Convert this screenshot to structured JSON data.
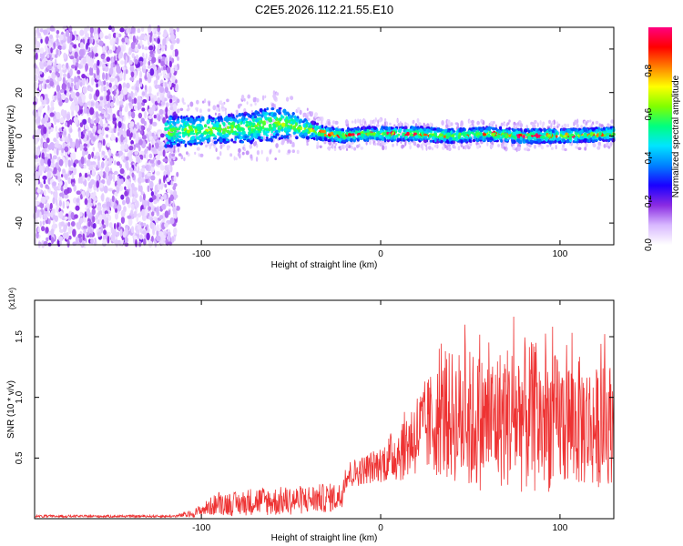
{
  "figure_title": "C2E5.2026.112.21.55.E10",
  "colors": {
    "axis": "#000000",
    "snr_line": "#ee3333",
    "spectrogram_background": "#ffffff"
  },
  "chart_data": [
    {
      "type": "heatmap",
      "name": "spectrogram",
      "xlabel": "Height of straight line (km)",
      "ylabel": "Frequency (Hz)",
      "xlim": [
        -193,
        130
      ],
      "ylim": [
        -50,
        50
      ],
      "x_ticks": [
        -100,
        0,
        100
      ],
      "x_tick_labels": [
        "-100",
        "0",
        "100"
      ],
      "y_ticks": [
        -40,
        -20,
        0,
        20,
        40
      ],
      "y_tick_labels": [
        "-40",
        "-20",
        "0",
        "20",
        "40"
      ],
      "noise_region_x": [
        -193,
        -113
      ],
      "signal_band": {
        "x": [
          -120,
          -90,
          -70,
          -60,
          -50,
          -40,
          -30,
          -20,
          -10,
          0,
          20,
          40,
          60,
          80,
          100,
          130
        ],
        "center_hz": [
          2,
          3,
          4,
          6,
          5,
          3,
          1,
          0,
          1,
          1,
          1,
          0,
          1,
          0,
          0,
          1
        ],
        "half_width_hz": [
          7,
          6,
          7,
          8,
          6,
          4,
          3,
          3,
          3,
          3,
          3,
          3,
          3,
          3,
          3,
          3
        ]
      },
      "colorbar": {
        "label": "Normalized spectral amplitude",
        "range": [
          0,
          1
        ],
        "ticks": [
          0,
          0.2,
          0.4,
          0.6,
          0.8
        ],
        "tick_labels": [
          "0.0",
          "0.2",
          "0.4",
          "0.6",
          "0.8"
        ],
        "colormap": [
          "#ffffff",
          "#d8b8ff",
          "#8a2be2",
          "#1a00ff",
          "#0080ff",
          "#00e5ff",
          "#00ff80",
          "#80ff00",
          "#ffff00",
          "#ff8000",
          "#ff0000",
          "#ff0080"
        ]
      }
    },
    {
      "type": "line",
      "name": "snr",
      "xlabel": "Height of straight line (km)",
      "ylabel": "SNR (10 * v/v)",
      "y_scale_label": "(x10⁴)",
      "xlim": [
        -193,
        130
      ],
      "ylim": [
        0,
        1.8
      ],
      "x_ticks": [
        -100,
        0,
        100
      ],
      "x_tick_labels": [
        "-100",
        "0",
        "100"
      ],
      "y_ticks": [
        0.5,
        1.0,
        1.5
      ],
      "y_tick_labels": [
        "0.5",
        "1.0",
        "1.5"
      ],
      "envelope": {
        "x": [
          -193,
          -115,
          -105,
          -100,
          -90,
          -80,
          -70,
          -60,
          -50,
          -40,
          -30,
          -22,
          -20,
          -10,
          0,
          10,
          20,
          30,
          40,
          50,
          60,
          70,
          80,
          90,
          100,
          110,
          120,
          130
        ],
        "mean": [
          0.02,
          0.02,
          0.04,
          0.07,
          0.13,
          0.12,
          0.15,
          0.14,
          0.15,
          0.16,
          0.17,
          0.18,
          0.35,
          0.4,
          0.45,
          0.55,
          0.7,
          0.8,
          0.85,
          0.8,
          0.8,
          0.85,
          0.85,
          0.8,
          0.8,
          0.8,
          0.75,
          0.8
        ],
        "amplitude": [
          0.01,
          0.01,
          0.03,
          0.05,
          0.1,
          0.1,
          0.12,
          0.12,
          0.12,
          0.12,
          0.12,
          0.12,
          0.12,
          0.12,
          0.15,
          0.25,
          0.35,
          0.45,
          0.55,
          0.6,
          0.55,
          0.6,
          0.65,
          0.6,
          0.55,
          0.55,
          0.5,
          0.5
        ]
      }
    }
  ]
}
